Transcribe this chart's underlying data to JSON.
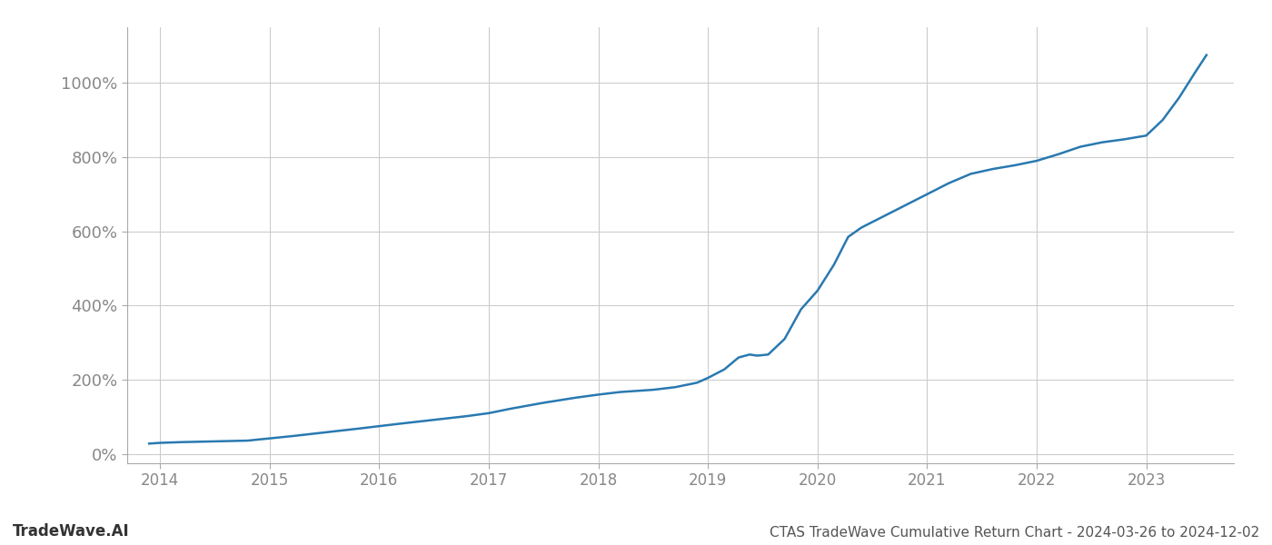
{
  "title": "CTAS TradeWave Cumulative Return Chart - 2024-03-26 to 2024-12-02",
  "watermark": "TradeWave.AI",
  "line_color": "#2979b0",
  "line_width": 1.8,
  "background_color": "#ffffff",
  "grid_color": "#cccccc",
  "data_points": [
    [
      2013.9,
      28
    ],
    [
      2014.0,
      30
    ],
    [
      2014.2,
      32
    ],
    [
      2014.5,
      34
    ],
    [
      2014.8,
      36
    ],
    [
      2015.0,
      42
    ],
    [
      2015.2,
      48
    ],
    [
      2015.5,
      58
    ],
    [
      2015.8,
      68
    ],
    [
      2016.0,
      75
    ],
    [
      2016.2,
      82
    ],
    [
      2016.5,
      92
    ],
    [
      2016.8,
      102
    ],
    [
      2017.0,
      110
    ],
    [
      2017.2,
      122
    ],
    [
      2017.5,
      138
    ],
    [
      2017.8,
      152
    ],
    [
      2018.0,
      160
    ],
    [
      2018.2,
      167
    ],
    [
      2018.5,
      173
    ],
    [
      2018.7,
      180
    ],
    [
      2018.9,
      192
    ],
    [
      2019.0,
      205
    ],
    [
      2019.15,
      228
    ],
    [
      2019.28,
      260
    ],
    [
      2019.38,
      268
    ],
    [
      2019.45,
      265
    ],
    [
      2019.55,
      268
    ],
    [
      2019.7,
      310
    ],
    [
      2019.85,
      390
    ],
    [
      2020.0,
      440
    ],
    [
      2020.15,
      510
    ],
    [
      2020.28,
      585
    ],
    [
      2020.4,
      610
    ],
    [
      2020.6,
      640
    ],
    [
      2020.8,
      670
    ],
    [
      2021.0,
      700
    ],
    [
      2021.2,
      730
    ],
    [
      2021.4,
      755
    ],
    [
      2021.6,
      768
    ],
    [
      2021.8,
      778
    ],
    [
      2022.0,
      790
    ],
    [
      2022.2,
      808
    ],
    [
      2022.4,
      828
    ],
    [
      2022.6,
      840
    ],
    [
      2022.8,
      848
    ],
    [
      2023.0,
      858
    ],
    [
      2023.15,
      900
    ],
    [
      2023.3,
      960
    ],
    [
      2023.45,
      1030
    ],
    [
      2023.55,
      1075
    ]
  ],
  "xlim": [
    2013.7,
    2023.8
  ],
  "ylim": [
    -25,
    1150
  ],
  "xticks": [
    2014,
    2015,
    2016,
    2017,
    2018,
    2019,
    2020,
    2021,
    2022,
    2023
  ],
  "yticks": [
    0,
    200,
    400,
    600,
    800,
    1000
  ],
  "figsize": [
    14,
    6
  ],
  "dpi": 100
}
